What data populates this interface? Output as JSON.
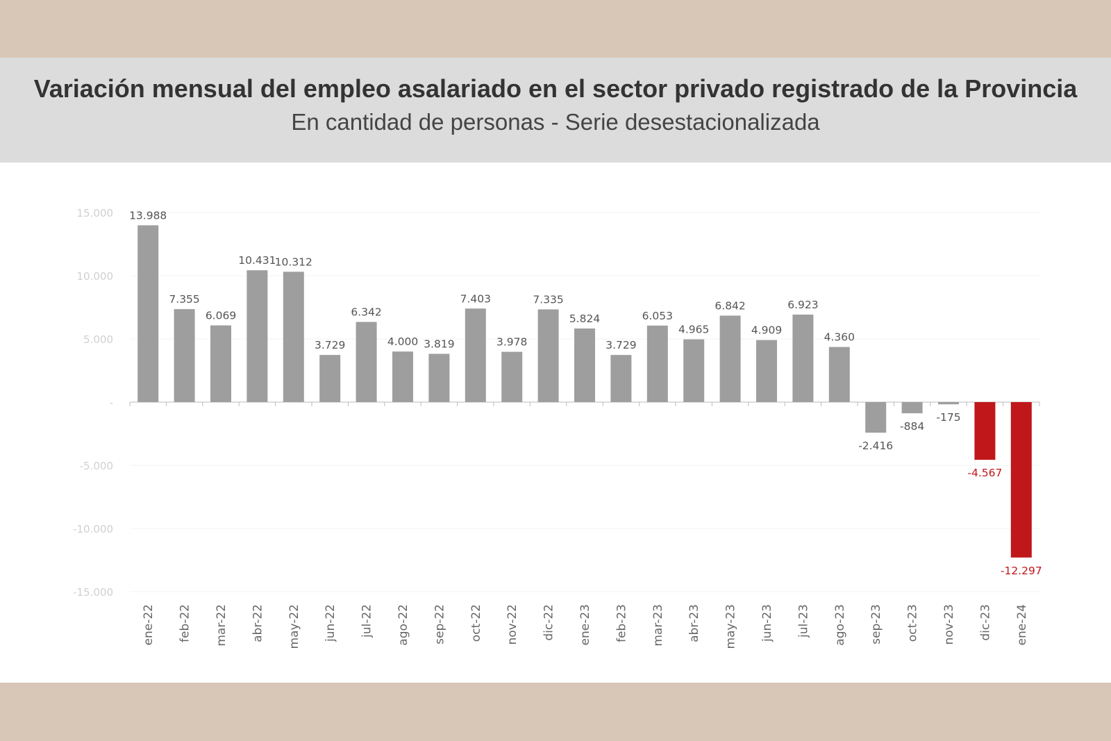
{
  "header": {
    "title": "Variación mensual del empleo asalariado en el sector privado registrado de la Provincia",
    "subtitle": "En cantidad de personas - Serie desestacionalizada"
  },
  "colors": {
    "bar": "#9e9e9e",
    "highlight": "#c0171a",
    "label": "#555555",
    "axis_label": "#d0d0d0",
    "band": "#d8c6b6",
    "title_bg": "#dcdcdc"
  },
  "chart_data": {
    "type": "bar",
    "title": "Variación mensual del empleo asalariado en el sector privado registrado de la Provincia",
    "subtitle": "En cantidad de personas - Serie desestacionalizada",
    "xlabel": "",
    "ylabel": "",
    "ylim": [
      -15000,
      15000
    ],
    "yticks": [
      15000,
      10000,
      5000,
      0,
      -5000,
      -10000,
      -15000
    ],
    "ytick_labels": [
      "15.000",
      "10.000",
      "5.000",
      "-",
      "-5.000",
      "-10.000",
      "-15.000"
    ],
    "grid": true,
    "categories": [
      "ene-22",
      "feb-22",
      "mar-22",
      "abr-22",
      "may-22",
      "jun-22",
      "jul-22",
      "ago-22",
      "sep-22",
      "oct-22",
      "nov-22",
      "dic-22",
      "ene-23",
      "feb-23",
      "mar-23",
      "abr-23",
      "may-23",
      "jun-23",
      "jul-23",
      "ago-23",
      "sep-23",
      "oct-23",
      "nov-23",
      "dic-23",
      "ene-24"
    ],
    "values": [
      13988,
      7355,
      6069,
      10431,
      10312,
      3729,
      6342,
      4000,
      3819,
      7403,
      3978,
      7335,
      5824,
      3729,
      6053,
      4965,
      6842,
      4909,
      6923,
      4360,
      -2416,
      -884,
      -175,
      -4567,
      -12297
    ],
    "value_labels": [
      "13.988",
      "7.355",
      "6.069",
      "10.431",
      "10.312",
      "3.729",
      "6.342",
      "4.000",
      "3.819",
      "7.403",
      "3.978",
      "7.335",
      "5.824",
      "3.729",
      "6.053",
      "4.965",
      "6.842",
      "4.909",
      "6.923",
      "4.360",
      "-2.416",
      "-884",
      "-175",
      "-4.567",
      "-12.297"
    ],
    "highlighted": [
      "dic-23",
      "ene-24"
    ]
  }
}
